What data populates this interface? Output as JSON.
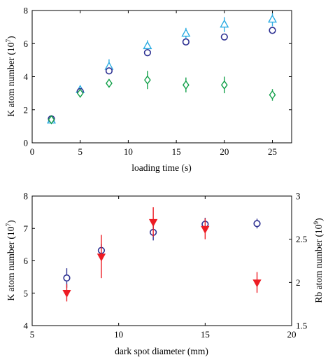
{
  "chart_data": [
    {
      "type": "scatter",
      "xlabel": "loading time (s)",
      "ylabel": "K atom number (10",
      "ylabel_exp": "7",
      "ylabel_close": ")",
      "xlim": [
        0,
        27
      ],
      "ylim": [
        0,
        8
      ],
      "xticks": [
        0,
        5,
        10,
        15,
        20,
        25
      ],
      "yticks": [
        0,
        2,
        4,
        6,
        8
      ],
      "grid": false,
      "series": [
        {
          "marker": "triangle-up",
          "color": "#29abe2",
          "x": [
            2,
            5,
            8,
            12,
            16,
            20,
            25
          ],
          "y": [
            1.35,
            3.2,
            4.6,
            5.85,
            6.6,
            7.15,
            7.45
          ],
          "err": [
            0.1,
            0.25,
            0.45,
            0.35,
            0.35,
            0.45,
            0.4
          ]
        },
        {
          "marker": "circle",
          "color": "#2e3192",
          "x": [
            2,
            5,
            8,
            12,
            16,
            20,
            25
          ],
          "y": [
            1.45,
            3.1,
            4.35,
            5.45,
            6.1,
            6.4,
            6.8
          ],
          "err": [
            0.1,
            0.1,
            0.15,
            0.15,
            0.1,
            0.15,
            0.1
          ]
        },
        {
          "marker": "diamond",
          "color": "#13a04a",
          "x": [
            2,
            5,
            8,
            12,
            16,
            20,
            25
          ],
          "y": [
            1.4,
            3.0,
            3.6,
            3.8,
            3.5,
            3.5,
            2.9
          ],
          "err": [
            0.05,
            0.15,
            0.1,
            0.55,
            0.45,
            0.5,
            0.35
          ]
        }
      ]
    },
    {
      "type": "scatter",
      "xlabel": "dark spot diameter (mm)",
      "ylabel": "K atom number (10",
      "ylabel_exp": "7",
      "ylabel_close": ")",
      "y2label": "Rb atom number (10",
      "y2label_exp": "9",
      "y2label_close": ")",
      "xlim": [
        5,
        20
      ],
      "ylim": [
        4,
        8
      ],
      "y2lim": [
        1.5,
        3
      ],
      "xticks": [
        5,
        10,
        15,
        20
      ],
      "yticks": [
        4,
        5,
        6,
        7,
        8
      ],
      "y2ticks": [
        1.5,
        2,
        2.5,
        3
      ],
      "y2ticklabels": [
        "1.5",
        "2",
        "2.5",
        "3"
      ],
      "grid": false,
      "series": [
        {
          "marker": "circle",
          "color": "#2e3192",
          "axis": "left",
          "x": [
            7,
            9,
            12,
            15,
            18
          ],
          "y": [
            5.47,
            6.32,
            6.88,
            7.13,
            7.15
          ],
          "err": [
            0.3,
            0.2,
            0.25,
            0.2,
            0.15
          ]
        },
        {
          "marker": "triangle-down",
          "color": "#ed1c24",
          "axis": "right",
          "x": [
            7,
            9,
            12,
            15,
            18
          ],
          "y": [
            1.88,
            2.3,
            2.7,
            2.62,
            2.0
          ],
          "err": [
            0.1,
            0.25,
            0.17,
            0.12,
            0.12
          ]
        }
      ]
    }
  ]
}
